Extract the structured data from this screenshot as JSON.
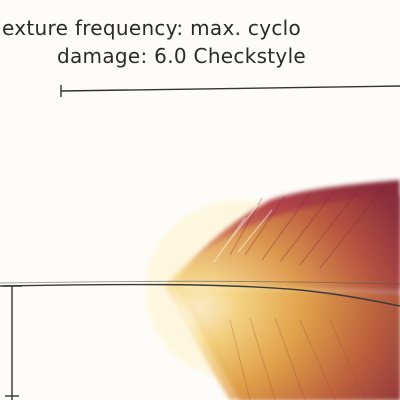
{
  "caption": {
    "line1": "exture frequency: max. cyclo",
    "line2": "damage: 6.0 Checkstyle"
  },
  "colors": {
    "text": "#2a2a2a",
    "line": "#333333",
    "feather_light": "#f6d98a",
    "feather_mid": "#e2a24a",
    "feather_dark": "#8a2f3c"
  }
}
